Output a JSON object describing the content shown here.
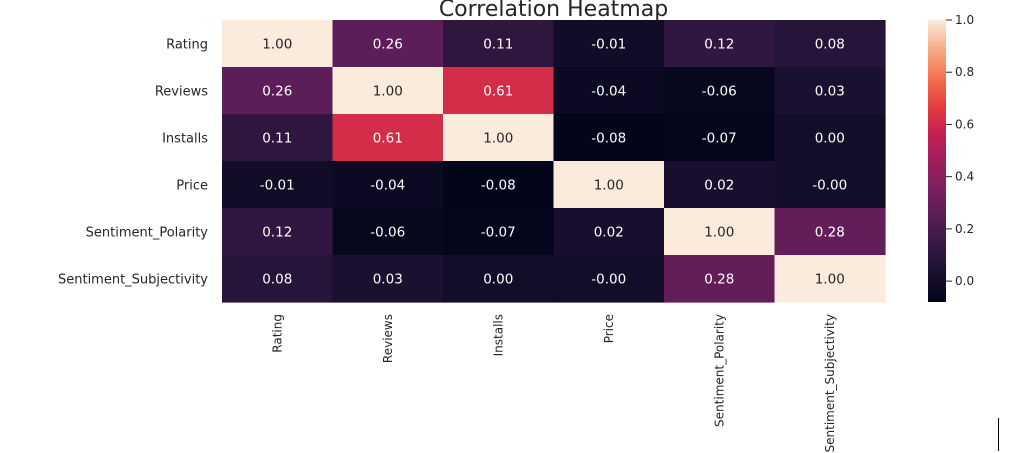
{
  "chart_data": {
    "type": "heatmap",
    "title": "Correlation Heatmap",
    "rows": [
      "Rating",
      "Reviews",
      "Installs",
      "Price",
      "Sentiment_Polarity",
      "Sentiment_Subjectivity"
    ],
    "columns": [
      "Rating",
      "Reviews",
      "Installs",
      "Price",
      "Sentiment_Polarity",
      "Sentiment_Subjectivity"
    ],
    "values": [
      [
        1.0,
        0.26,
        0.11,
        -0.01,
        0.12,
        0.08
      ],
      [
        0.26,
        1.0,
        0.61,
        -0.04,
        -0.06,
        0.03
      ],
      [
        0.11,
        0.61,
        1.0,
        -0.08,
        -0.07,
        0.0
      ],
      [
        -0.01,
        -0.04,
        -0.08,
        1.0,
        0.02,
        -0.0
      ],
      [
        0.12,
        -0.06,
        -0.07,
        0.02,
        1.0,
        0.28
      ],
      [
        0.08,
        0.03,
        0.0,
        -0.0,
        0.28,
        1.0
      ]
    ],
    "annotations": [
      [
        "1.00",
        "0.26",
        "0.11",
        "-0.01",
        "0.12",
        "0.08"
      ],
      [
        "0.26",
        "1.00",
        "0.61",
        "-0.04",
        "-0.06",
        "0.03"
      ],
      [
        "0.11",
        "0.61",
        "1.00",
        "-0.08",
        "-0.07",
        "0.00"
      ],
      [
        "-0.01",
        "-0.04",
        "-0.08",
        "1.00",
        "0.02",
        "-0.00"
      ],
      [
        "0.12",
        "-0.06",
        "-0.07",
        "0.02",
        "1.00",
        "0.28"
      ],
      [
        "0.08",
        "0.03",
        "0.00",
        "-0.00",
        "0.28",
        "1.00"
      ]
    ],
    "colorbar": {
      "range": [
        -0.08,
        1.0
      ],
      "ticks": [
        0.0,
        0.2,
        0.4,
        0.6,
        0.8,
        1.0
      ],
      "tick_labels": [
        "0.0",
        "0.2",
        "0.4",
        "0.6",
        "0.8",
        "1.0"
      ],
      "colormap": "rocket"
    }
  }
}
